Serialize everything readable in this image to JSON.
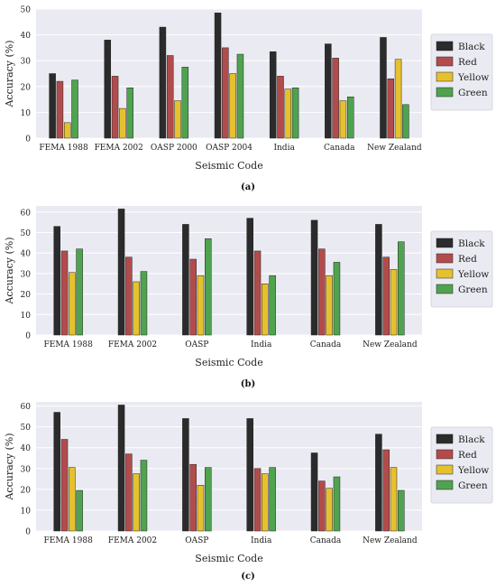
{
  "colors": {
    "Black": "#2b2b2b",
    "Red": "#b24c4c",
    "Yellow": "#e6c12e",
    "Green": "#4fa34f",
    "plot_bg": "#eaeaf2"
  },
  "chart_data": [
    {
      "type": "bar",
      "caption": "(a)",
      "xlabel": "Seismic Code",
      "ylabel": "Accuracy (%)",
      "ylim": [
        0,
        50
      ],
      "yticks": [
        0,
        10,
        20,
        30,
        40,
        50
      ],
      "grid": true,
      "legend": "right",
      "categories": [
        "FEMA 1988",
        "FEMA 2002",
        "OASP 2000",
        "OASP 2004",
        "India",
        "Canada",
        "New Zealand"
      ],
      "series": [
        {
          "name": "Black",
          "values": [
            25,
            38,
            43,
            48.5,
            33.5,
            36.5,
            39
          ]
        },
        {
          "name": "Red",
          "values": [
            22,
            24,
            32,
            35,
            24,
            31,
            23
          ]
        },
        {
          "name": "Yellow",
          "values": [
            6,
            11.5,
            14.5,
            25,
            19,
            14.5,
            30.5
          ]
        },
        {
          "name": "Green",
          "values": [
            22.5,
            19.5,
            27.5,
            32.5,
            19.5,
            16,
            13
          ]
        }
      ]
    },
    {
      "type": "bar",
      "caption": "(b)",
      "xlabel": "Seismic Code",
      "ylabel": "Accuracy (%)",
      "ylim": [
        0,
        63
      ],
      "yticks": [
        0,
        10,
        20,
        30,
        40,
        50,
        60
      ],
      "grid": true,
      "legend": "right",
      "categories": [
        "FEMA 1988",
        "FEMA 2002",
        "OASP",
        "India",
        "Canada",
        "New Zealand"
      ],
      "series": [
        {
          "name": "Black",
          "values": [
            53,
            61.5,
            54,
            57,
            56,
            54
          ]
        },
        {
          "name": "Red",
          "values": [
            41,
            38,
            37,
            41,
            42,
            38
          ]
        },
        {
          "name": "Yellow",
          "values": [
            30.5,
            26,
            29,
            25,
            29,
            32
          ]
        },
        {
          "name": "Green",
          "values": [
            42,
            31,
            47,
            29,
            35.5,
            45.5
          ]
        }
      ]
    },
    {
      "type": "bar",
      "caption": "(c)",
      "xlabel": "Seismic Code",
      "ylabel": "Accuracy (%)",
      "ylim": [
        0,
        62
      ],
      "yticks": [
        0,
        10,
        20,
        30,
        40,
        50,
        60
      ],
      "grid": true,
      "legend": "right",
      "categories": [
        "FEMA 1988",
        "FEMA 2002",
        "OASP",
        "India",
        "Canada",
        "New Zealand"
      ],
      "series": [
        {
          "name": "Black",
          "values": [
            57,
            60.5,
            54,
            54,
            37.5,
            46.5
          ]
        },
        {
          "name": "Red",
          "values": [
            44,
            37,
            32,
            30,
            24,
            39
          ]
        },
        {
          "name": "Yellow",
          "values": [
            30.5,
            27.5,
            22,
            27.5,
            20.5,
            30.5
          ]
        },
        {
          "name": "Green",
          "values": [
            19.5,
            34,
            30.5,
            30.5,
            26,
            19.5
          ]
        }
      ]
    }
  ]
}
